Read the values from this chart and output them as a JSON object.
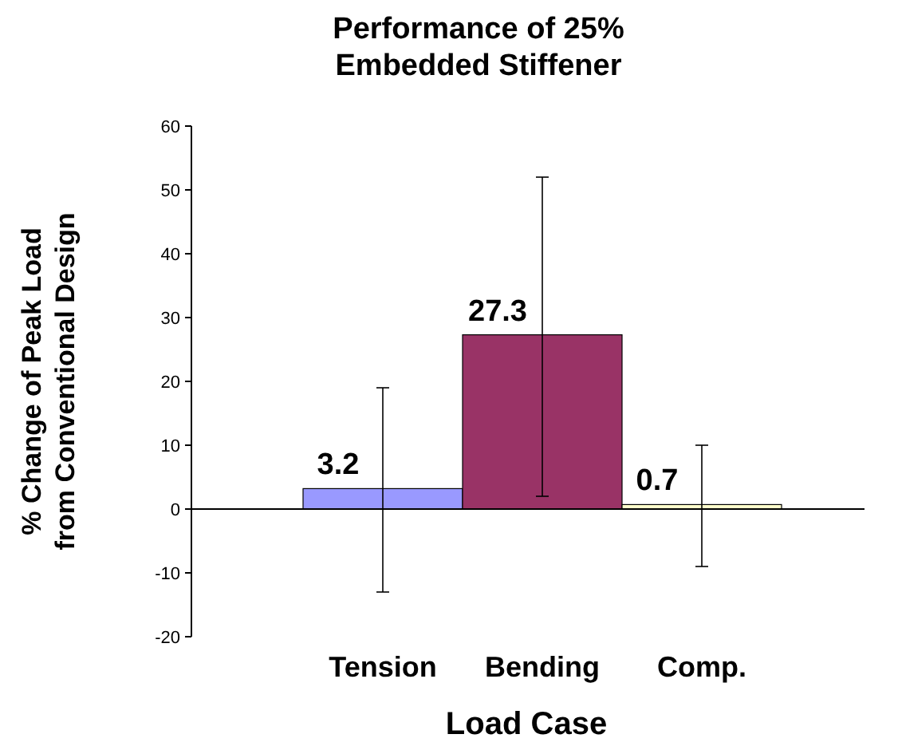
{
  "chart_data": {
    "type": "bar",
    "title": "Performance of 25% Embedded Stiffener",
    "xlabel": "Load Case",
    "ylabel": "% Change of Peak Load from Conventional Design",
    "categories": [
      "Tension",
      "Bending",
      "Comp."
    ],
    "values": [
      3.2,
      27.3,
      0.7
    ],
    "colors": [
      "#9999ff",
      "#993366",
      "#ffffcc"
    ],
    "errors": [
      [
        -13,
        19
      ],
      [
        2,
        52
      ],
      [
        -9,
        10
      ]
    ],
    "data_labels": true,
    "ylim": [
      -20,
      60
    ],
    "yticks": [
      -20,
      -10,
      0,
      10,
      20,
      30,
      40,
      50,
      60
    ]
  }
}
